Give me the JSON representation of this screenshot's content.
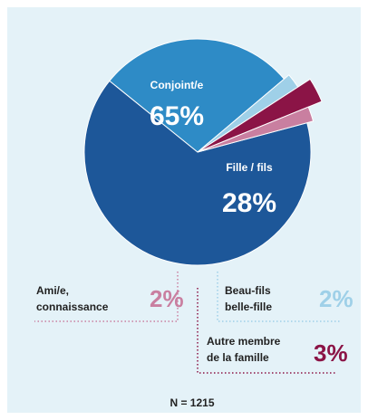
{
  "chart_data": {
    "type": "pie",
    "categories": [
      [
        "Conjoint/e"
      ],
      [
        "Fille / fils"
      ],
      [
        "Beau-fils",
        "belle-fille"
      ],
      [
        "Autre membre",
        "de la famille"
      ],
      [
        "Ami/e,",
        "connaissance"
      ]
    ],
    "values": [
      65,
      28,
      2,
      3,
      2
    ],
    "value_labels": [
      "65%",
      "28%",
      "2%",
      "3%",
      "2%"
    ],
    "colors": [
      "#1d5799",
      "#2e8bc6",
      "#9fd0e8",
      "#8b1446",
      "#c97fa0"
    ],
    "annotation": "N = 1215"
  }
}
